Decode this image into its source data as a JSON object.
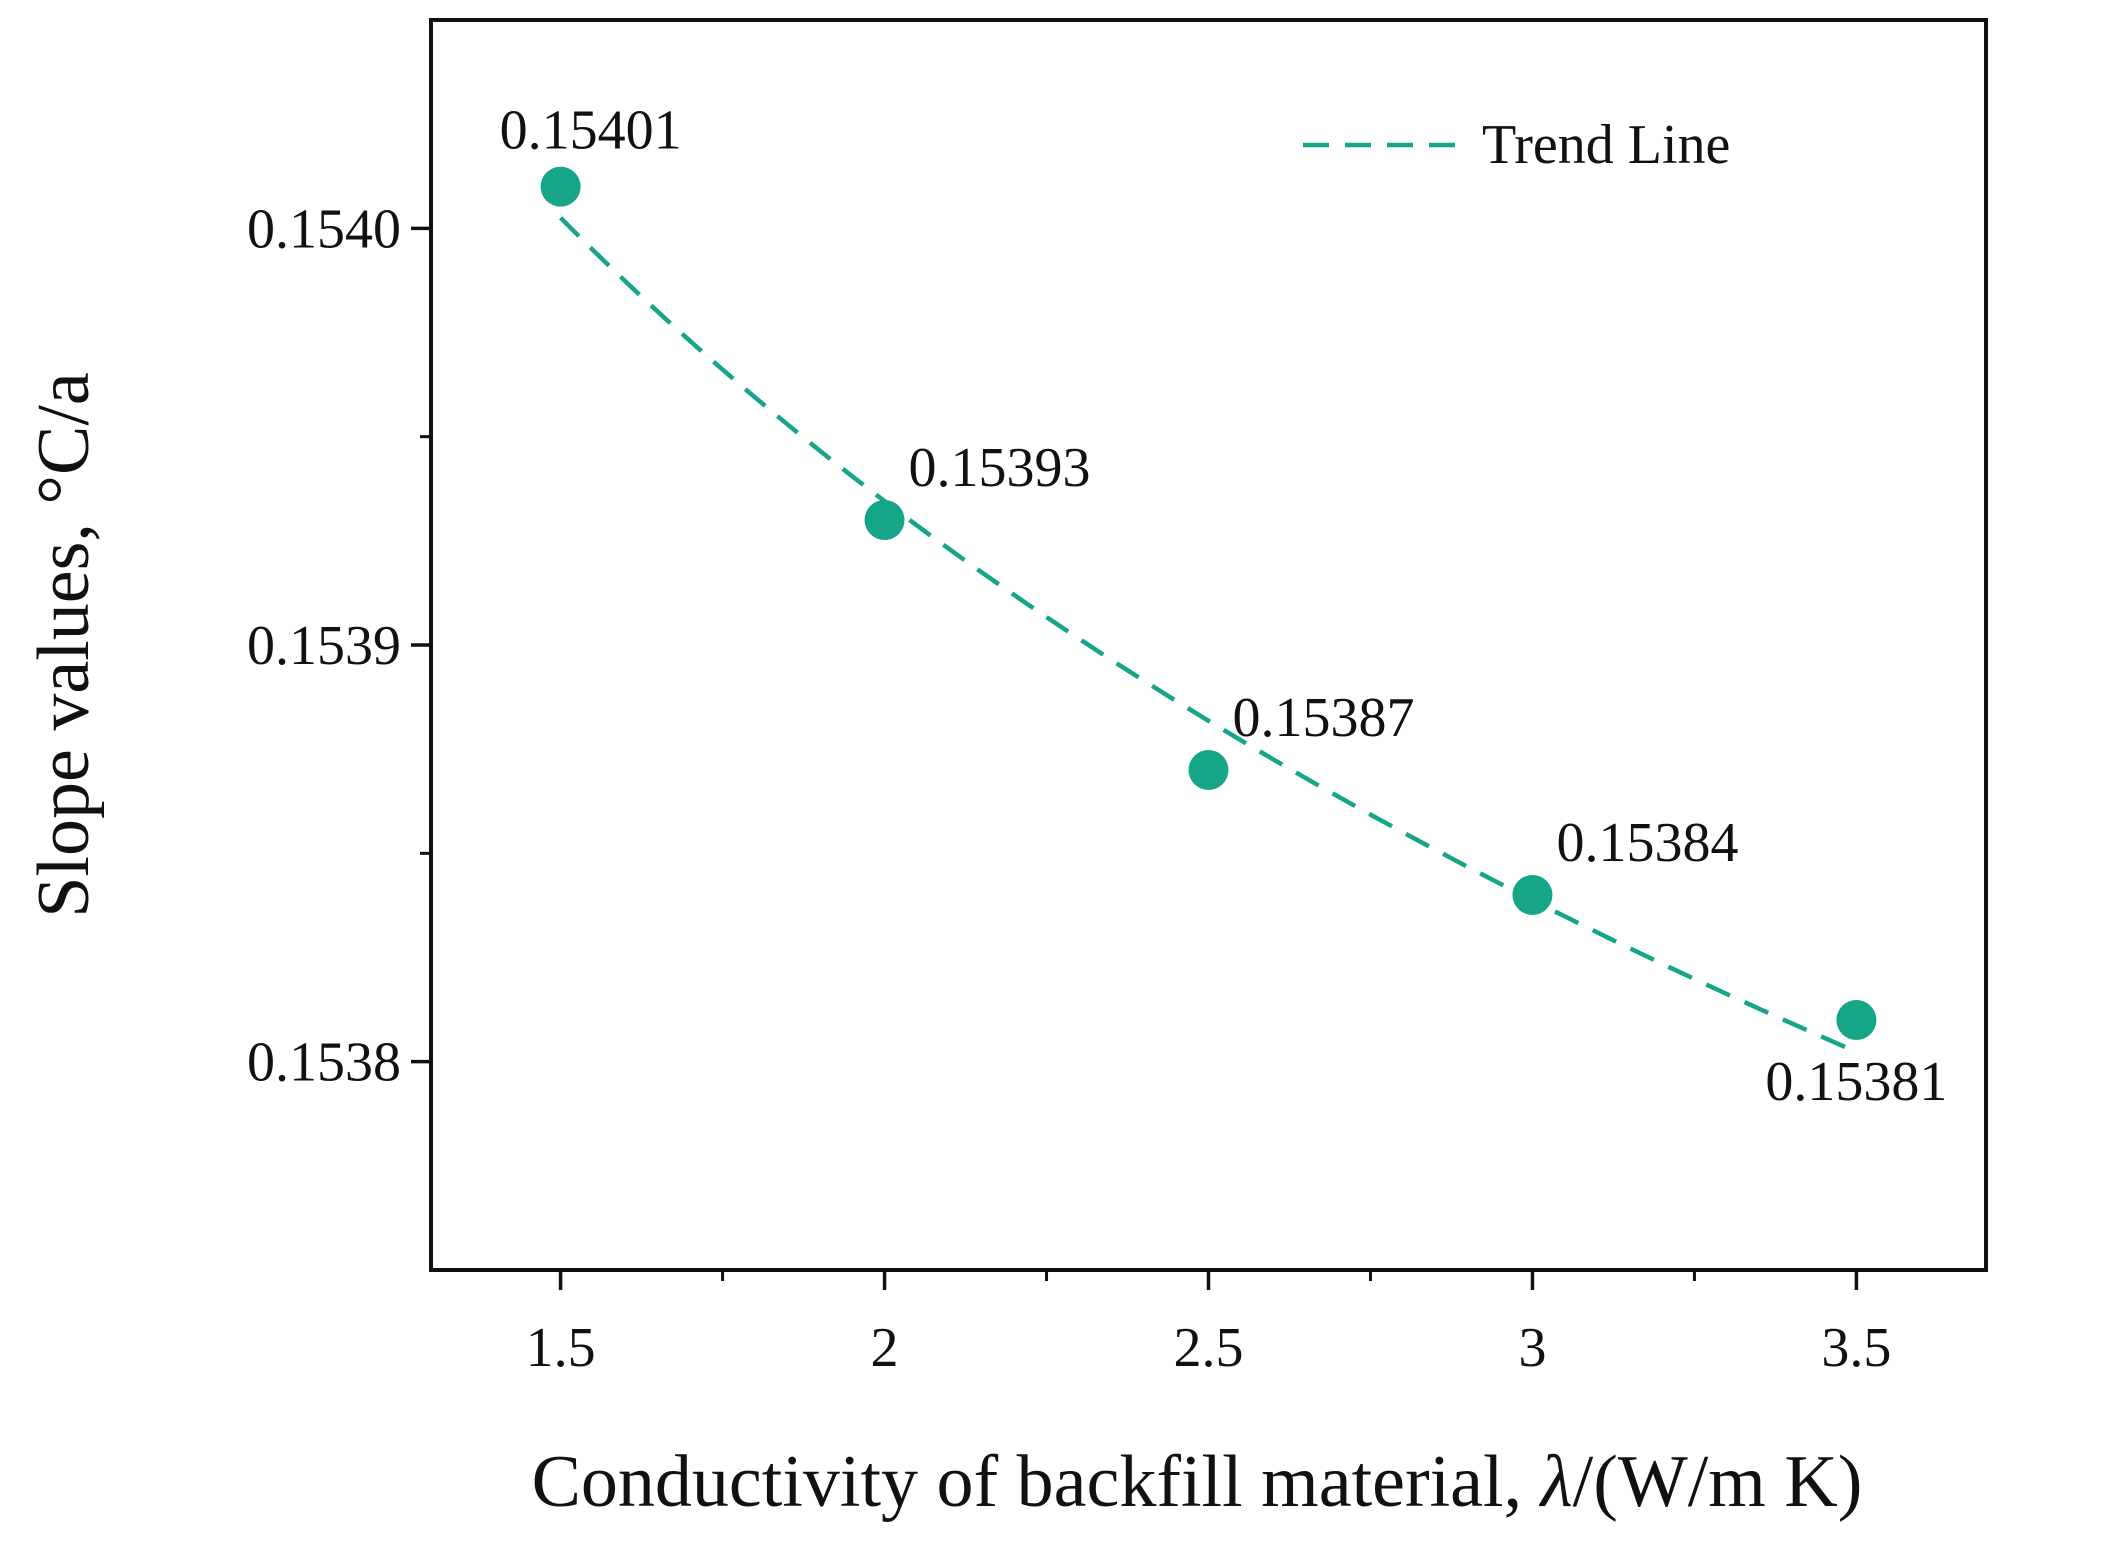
{
  "chart_data": {
    "type": "scatter",
    "title": "",
    "xlabel": "Conductivity of backfill material, ",
    "xlabel_symbol": "λ",
    "xlabel_unit": "/(W/m K)",
    "ylabel": "Slope values,  °C/a",
    "xlim": [
      1.3,
      3.7
    ],
    "ylim": [
      0.15375,
      0.15405
    ],
    "x_ticks": [
      1.5,
      2,
      2.5,
      3,
      3.5
    ],
    "x_tick_labels": [
      "1.5",
      "2",
      "2.5",
      "3",
      "3.5"
    ],
    "x_minor_ticks": [
      1.75,
      2.25,
      2.75,
      3.25
    ],
    "y_ticks": [
      0.1538,
      0.1539,
      0.154
    ],
    "y_tick_labels": [
      "0.1538",
      "0.1539",
      "0.1540"
    ],
    "y_minor_ticks": [
      0.15385,
      0.15395
    ],
    "x": [
      1.5,
      2,
      2.5,
      3,
      3.5
    ],
    "y": [
      0.15401,
      0.15393,
      0.15387,
      0.15384,
      0.15381
    ],
    "data_labels": [
      "0.15401",
      "0.15393",
      "0.15387",
      "0.15384",
      "0.15381"
    ],
    "data_label_position": [
      "above",
      "above-right",
      "above-right",
      "above-right",
      "below"
    ],
    "point_color": "#17a589",
    "trend_line": {
      "name": "Trend Line",
      "style": "dashed",
      "color": "#17a589",
      "type": "power fit through the data points"
    },
    "legend": {
      "entries": [
        "Trend Line"
      ],
      "position": "top-right"
    },
    "grid": false
  }
}
